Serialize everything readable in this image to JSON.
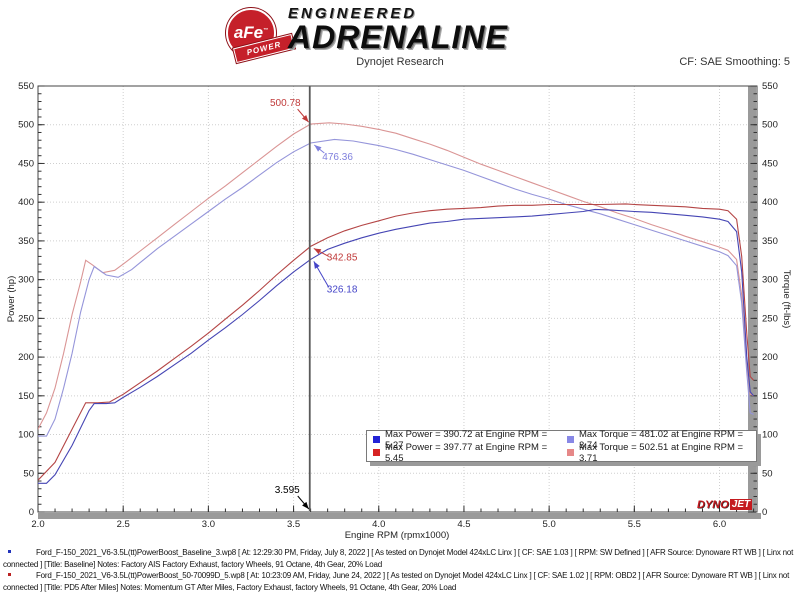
{
  "header": {
    "brand_circle_text": "aFe",
    "brand_banner_text": "POWER",
    "brand_line1": "ENGINEERED",
    "brand_line2": "ADRENALINE",
    "subtitle": "Dynojet Research",
    "cf_label": "CF: SAE Smoothing: 5"
  },
  "chart_data": {
    "type": "line",
    "title": "Dynojet Research",
    "xlabel": "Engine RPM (rpmx1000)",
    "ylabel_left": "Power (hp)",
    "ylabel_right": "Torque (ft-lbs)",
    "x_range": [
      2.0,
      6.22
    ],
    "y_range": [
      0,
      550
    ],
    "x_ticks": [
      2.0,
      2.5,
      3.0,
      3.5,
      4.0,
      4.5,
      5.0,
      5.5,
      6.0
    ],
    "x_minor_step": 0.1,
    "y_ticks": [
      0,
      50,
      100,
      150,
      200,
      250,
      300,
      350,
      400,
      450,
      500,
      550
    ],
    "y_minor_step": 10,
    "grid": "dotted",
    "cursor": {
      "rpm": 3.595,
      "label": "3.595"
    },
    "series": [
      {
        "name": "Torque PD5 After Miles",
        "unit": "ft-lbs",
        "axis": "right",
        "color": "#da9595",
        "points": [
          [
            2.0,
            107
          ],
          [
            2.05,
            128
          ],
          [
            2.1,
            160
          ],
          [
            2.15,
            205
          ],
          [
            2.2,
            255
          ],
          [
            2.25,
            297
          ],
          [
            2.28,
            325
          ],
          [
            2.32,
            319
          ],
          [
            2.38,
            309
          ],
          [
            2.45,
            312
          ],
          [
            2.5,
            320
          ],
          [
            2.6,
            337
          ],
          [
            2.7,
            354
          ],
          [
            2.8,
            371
          ],
          [
            2.9,
            388
          ],
          [
            3.0,
            405
          ],
          [
            3.1,
            421
          ],
          [
            3.2,
            438
          ],
          [
            3.3,
            455
          ],
          [
            3.4,
            472
          ],
          [
            3.5,
            488
          ],
          [
            3.6,
            500.78
          ],
          [
            3.71,
            502.51
          ],
          [
            3.8,
            501
          ],
          [
            3.9,
            498
          ],
          [
            4.0,
            494
          ],
          [
            4.1,
            489
          ],
          [
            4.2,
            482
          ],
          [
            4.3,
            475
          ],
          [
            4.4,
            467
          ],
          [
            4.5,
            458
          ],
          [
            4.6,
            449
          ],
          [
            4.7,
            441
          ],
          [
            4.8,
            433
          ],
          [
            4.9,
            425
          ],
          [
            5.0,
            417
          ],
          [
            5.1,
            409
          ],
          [
            5.2,
            401
          ],
          [
            5.3,
            394
          ],
          [
            5.4,
            386
          ],
          [
            5.5,
            379
          ],
          [
            5.6,
            371
          ],
          [
            5.7,
            364
          ],
          [
            5.8,
            356
          ],
          [
            5.9,
            349
          ],
          [
            6.0,
            342
          ],
          [
            6.05,
            338
          ],
          [
            6.1,
            326
          ],
          [
            6.13,
            280
          ],
          [
            6.16,
            190
          ],
          [
            6.18,
            152
          ],
          [
            6.2,
            150
          ]
        ]
      },
      {
        "name": "Torque Baseline",
        "unit": "ft-lbs",
        "axis": "right",
        "color": "#9595da",
        "points": [
          [
            2.0,
            98
          ],
          [
            2.05,
            98
          ],
          [
            2.1,
            120
          ],
          [
            2.15,
            160
          ],
          [
            2.2,
            205
          ],
          [
            2.25,
            258
          ],
          [
            2.3,
            300
          ],
          [
            2.33,
            317
          ],
          [
            2.4,
            306
          ],
          [
            2.47,
            303
          ],
          [
            2.55,
            313
          ],
          [
            2.6,
            322
          ],
          [
            2.7,
            340
          ],
          [
            2.8,
            356
          ],
          [
            2.9,
            372
          ],
          [
            3.0,
            388
          ],
          [
            3.1,
            404
          ],
          [
            3.2,
            419
          ],
          [
            3.3,
            435
          ],
          [
            3.4,
            451
          ],
          [
            3.5,
            465
          ],
          [
            3.6,
            476.36
          ],
          [
            3.74,
            481.02
          ],
          [
            3.85,
            479
          ],
          [
            3.95,
            475
          ],
          [
            4.0,
            473
          ],
          [
            4.1,
            468
          ],
          [
            4.2,
            462
          ],
          [
            4.3,
            455
          ],
          [
            4.4,
            448
          ],
          [
            4.5,
            441
          ],
          [
            4.6,
            433
          ],
          [
            4.7,
            425
          ],
          [
            4.8,
            417
          ],
          [
            4.9,
            410
          ],
          [
            5.0,
            404
          ],
          [
            5.1,
            397
          ],
          [
            5.2,
            391
          ],
          [
            5.3,
            385
          ],
          [
            5.4,
            378
          ],
          [
            5.5,
            371
          ],
          [
            5.6,
            364
          ],
          [
            5.7,
            357
          ],
          [
            5.8,
            350
          ],
          [
            5.9,
            343
          ],
          [
            6.0,
            336
          ],
          [
            6.05,
            331
          ],
          [
            6.1,
            318
          ],
          [
            6.13,
            270
          ],
          [
            6.16,
            180
          ],
          [
            6.18,
            128
          ],
          [
            6.2,
            126
          ]
        ]
      },
      {
        "name": "Power PD5 After Miles",
        "unit": "hp",
        "axis": "left",
        "color": "#b44545",
        "points": [
          [
            2.0,
            41
          ],
          [
            2.1,
            64
          ],
          [
            2.2,
            107
          ],
          [
            2.28,
            141
          ],
          [
            2.35,
            141
          ],
          [
            2.42,
            142
          ],
          [
            2.5,
            152
          ],
          [
            2.6,
            167
          ],
          [
            2.7,
            182
          ],
          [
            2.8,
            198
          ],
          [
            2.9,
            214
          ],
          [
            3.0,
            231
          ],
          [
            3.1,
            249
          ],
          [
            3.2,
            267
          ],
          [
            3.3,
            286
          ],
          [
            3.4,
            306
          ],
          [
            3.5,
            325
          ],
          [
            3.6,
            342.85
          ],
          [
            3.7,
            354
          ],
          [
            3.8,
            363
          ],
          [
            3.9,
            370
          ],
          [
            4.0,
            376
          ],
          [
            4.1,
            382
          ],
          [
            4.2,
            386
          ],
          [
            4.3,
            389
          ],
          [
            4.4,
            391
          ],
          [
            4.5,
            392
          ],
          [
            4.6,
            393
          ],
          [
            4.7,
            395
          ],
          [
            4.8,
            396
          ],
          [
            4.9,
            396
          ],
          [
            5.0,
            397
          ],
          [
            5.1,
            397
          ],
          [
            5.2,
            397
          ],
          [
            5.3,
            397
          ],
          [
            5.45,
            397.77
          ],
          [
            5.5,
            397
          ],
          [
            5.6,
            396
          ],
          [
            5.7,
            395
          ],
          [
            5.8,
            394
          ],
          [
            5.9,
            392
          ],
          [
            6.0,
            391
          ],
          [
            6.05,
            389
          ],
          [
            6.1,
            378
          ],
          [
            6.13,
            330
          ],
          [
            6.16,
            230
          ],
          [
            6.18,
            175
          ],
          [
            6.2,
            170
          ]
        ]
      },
      {
        "name": "Power Baseline",
        "unit": "hp",
        "axis": "left",
        "color": "#4545b4",
        "points": [
          [
            2.0,
            37
          ],
          [
            2.05,
            37
          ],
          [
            2.1,
            48
          ],
          [
            2.2,
            86
          ],
          [
            2.3,
            131
          ],
          [
            2.33,
            140
          ],
          [
            2.4,
            140
          ],
          [
            2.45,
            141
          ],
          [
            2.5,
            148
          ],
          [
            2.6,
            161
          ],
          [
            2.7,
            175
          ],
          [
            2.8,
            190
          ],
          [
            2.9,
            205
          ],
          [
            3.0,
            222
          ],
          [
            3.1,
            238
          ],
          [
            3.2,
            255
          ],
          [
            3.3,
            273
          ],
          [
            3.4,
            292
          ],
          [
            3.5,
            310
          ],
          [
            3.6,
            326.18
          ],
          [
            3.7,
            339
          ],
          [
            3.8,
            347
          ],
          [
            3.9,
            354
          ],
          [
            4.0,
            360
          ],
          [
            4.1,
            365
          ],
          [
            4.2,
            369
          ],
          [
            4.3,
            373
          ],
          [
            4.4,
            375
          ],
          [
            4.5,
            378
          ],
          [
            4.6,
            379
          ],
          [
            4.7,
            380
          ],
          [
            4.8,
            381
          ],
          [
            4.9,
            382
          ],
          [
            5.0,
            384
          ],
          [
            5.1,
            386
          ],
          [
            5.2,
            388
          ],
          [
            5.27,
            390.72
          ],
          [
            5.35,
            390
          ],
          [
            5.5,
            388
          ],
          [
            5.6,
            387
          ],
          [
            5.7,
            385
          ],
          [
            5.8,
            383
          ],
          [
            5.9,
            381
          ],
          [
            6.0,
            378
          ],
          [
            6.05,
            375
          ],
          [
            6.1,
            362
          ],
          [
            6.13,
            310
          ],
          [
            6.16,
            200
          ],
          [
            6.18,
            155
          ],
          [
            6.2,
            150
          ]
        ]
      }
    ],
    "callouts": [
      {
        "text": "500.78",
        "color": "#c03a3a",
        "rpm": 3.6,
        "value": 500.78,
        "anchor": "end",
        "dxl": -10,
        "dyl": -18,
        "dxt": -13,
        "dyt": -15
      },
      {
        "text": "476.36",
        "color": "#7f7fdd",
        "rpm": 3.61,
        "value": 476.36,
        "anchor": "start",
        "dxl": 10,
        "dyl": 17,
        "dxt": 12,
        "dyt": 10
      },
      {
        "text": "342.85",
        "color": "#c03a3a",
        "rpm": 3.607,
        "value": 342.85,
        "anchor": "start",
        "dxl": 15,
        "dyl": 14,
        "dxt": 17,
        "dyt": 10
      },
      {
        "text": "326.18",
        "color": "#4545c8",
        "rpm": 3.607,
        "value": 326.18,
        "anchor": "start",
        "dxl": 15,
        "dyl": 33,
        "dxt": 17,
        "dyt": 28
      }
    ],
    "legend": {
      "rows": [
        [
          {
            "color": "#2323d6",
            "text": "Max Power = 390.72 at Engine RPM = 5.27"
          },
          {
            "color": "#8888e6",
            "text": "Max Torque = 481.02 at Engine RPM = 3.74"
          }
        ],
        [
          {
            "color": "#d62323",
            "text": "Max Power = 397.77 at Engine RPM = 5.45"
          },
          {
            "color": "#e68888",
            "text": "Max Torque = 502.51 at Engine RPM = 3.71"
          }
        ]
      ]
    },
    "watermark": {
      "part1": "DYNO",
      "part2": "JET"
    }
  },
  "footnotes": [
    {
      "bullet_color": "#2233bb",
      "text": "Ford_F-150_2021_V6-3.5L(tt)PowerBoost_Baseline_3.wp8 [ At: 12:29:30 PM, Friday, July 8, 2022 ] [ As tested on Dynojet Model 424xLC Linx ] [ CF: SAE 1.03 ] [ RPM: SW Defined ] [ AFR Source: Dynoware RT WB ] [ Linx not connected ] [Title: Baseline]  Notes: Factory AIS  Factory Exhaust, factory Wheels, 91 Octane, 4th Gear, 20% Load"
    },
    {
      "bullet_color": "#bb2222",
      "text": "Ford_F-150_2021_V6-3.5L(tt)PowerBoost_50-70099D_5.wp8 [ At: 10:23:09 AM, Friday, June 24, 2022 ] [ As tested on Dynojet Model 424xLC Linx ] [ CF: SAE 1.02 ] [ RPM: OBD2 ] [ AFR Source: Dynoware RT WB ] [ Linx not connected ] [Title: PD5 After Miles]  Notes: Momentum GT After Miles, Factory Exhaust, factory Wheels, 91 Octane, 4th Gear, 20% Load"
    }
  ]
}
